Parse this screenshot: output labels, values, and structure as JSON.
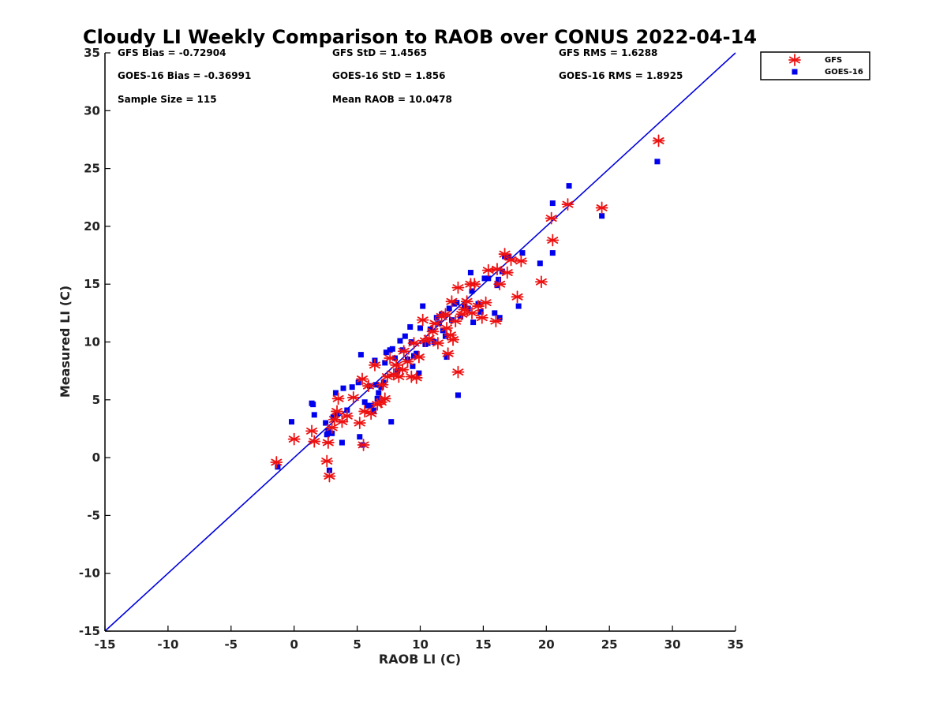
{
  "chart_data": {
    "type": "scatter",
    "title": "Cloudy LI Weekly Comparison to RAOB over CONUS 2022-04-14",
    "xlabel": "RAOB LI (C)",
    "ylabel": "Measured LI (C)",
    "xlim": [
      -15,
      35
    ],
    "ylim": [
      -15,
      35
    ],
    "xticks": [
      "-15",
      "-10",
      "-5",
      "0",
      "5",
      "10",
      "15",
      "20",
      "25",
      "30",
      "35"
    ],
    "yticks": [
      "-15",
      "-10",
      "-5",
      "0",
      "5",
      "10",
      "15",
      "20",
      "25",
      "30",
      "35"
    ],
    "grid": false,
    "legend_position": "outside top-right",
    "reference_line": {
      "x": [
        -15,
        35
      ],
      "y": [
        -15,
        35
      ],
      "color": "#0000dd"
    },
    "stats": {
      "gfs_bias": "GFS Bias = -0.72904",
      "gfs_std": "GFS StD = 1.4565",
      "gfs_rms": "GFS RMS = 1.6288",
      "goes_bias": "GOES-16 Bias = -0.36991",
      "goes_std": "GOES-16 StD = 1.856",
      "goes_rms": "GOES-16 RMS = 1.8925",
      "sample_size": "Sample Size = 115",
      "mean_raob": "Mean RAOB = 10.0478"
    },
    "series": [
      {
        "name": "GFS",
        "marker": "asterisk",
        "color": "#ee1111",
        "points": [
          [
            -1.4,
            -0.4
          ],
          [
            0.0,
            1.6
          ],
          [
            1.4,
            2.3
          ],
          [
            1.6,
            1.4
          ],
          [
            2.6,
            -0.3
          ],
          [
            2.7,
            1.3
          ],
          [
            2.8,
            -1.6
          ],
          [
            3.0,
            2.6
          ],
          [
            3.2,
            3.3
          ],
          [
            3.4,
            4.0
          ],
          [
            3.5,
            5.1
          ],
          [
            3.8,
            3.1
          ],
          [
            4.2,
            3.6
          ],
          [
            4.7,
            5.2
          ],
          [
            5.2,
            3.0
          ],
          [
            5.5,
            1.1
          ],
          [
            5.4,
            6.8
          ],
          [
            5.6,
            4.0
          ],
          [
            5.9,
            6.2
          ],
          [
            6.1,
            3.8
          ],
          [
            6.4,
            8.0
          ],
          [
            6.6,
            4.6
          ],
          [
            6.9,
            4.8
          ],
          [
            7.0,
            6.3
          ],
          [
            7.2,
            5.1
          ],
          [
            7.4,
            7.0
          ],
          [
            7.6,
            8.6
          ],
          [
            7.9,
            7.2
          ],
          [
            8.1,
            8.0
          ],
          [
            8.3,
            7.0
          ],
          [
            8.6,
            7.6
          ],
          [
            8.7,
            9.2
          ],
          [
            9.0,
            8.3
          ],
          [
            9.3,
            7.0
          ],
          [
            9.5,
            9.9
          ],
          [
            9.7,
            6.9
          ],
          [
            9.9,
            8.7
          ],
          [
            10.2,
            11.9
          ],
          [
            10.4,
            10.1
          ],
          [
            10.7,
            10.3
          ],
          [
            11.0,
            10.9
          ],
          [
            11.2,
            11.6
          ],
          [
            11.4,
            9.9
          ],
          [
            11.7,
            12.2
          ],
          [
            12.0,
            12.4
          ],
          [
            12.1,
            11.2
          ],
          [
            12.2,
            9.0
          ],
          [
            12.4,
            10.6
          ],
          [
            12.5,
            13.5
          ],
          [
            12.6,
            10.2
          ],
          [
            12.8,
            11.8
          ],
          [
            13.0,
            14.7
          ],
          [
            13.0,
            7.4
          ],
          [
            13.3,
            12.4
          ],
          [
            13.5,
            12.8
          ],
          [
            13.7,
            13.5
          ],
          [
            14.0,
            15.0
          ],
          [
            14.1,
            12.5
          ],
          [
            14.3,
            15.0
          ],
          [
            14.6,
            13.1
          ],
          [
            14.9,
            12.1
          ],
          [
            15.2,
            13.4
          ],
          [
            15.4,
            16.2
          ],
          [
            16.0,
            11.8
          ],
          [
            16.1,
            16.3
          ],
          [
            16.3,
            15.0
          ],
          [
            16.7,
            17.6
          ],
          [
            16.9,
            16.0
          ],
          [
            17.2,
            17.1
          ],
          [
            17.7,
            13.9
          ],
          [
            18.0,
            17.0
          ],
          [
            19.6,
            15.2
          ],
          [
            20.4,
            20.7
          ],
          [
            20.5,
            18.8
          ],
          [
            21.7,
            21.9
          ],
          [
            24.4,
            21.6
          ],
          [
            28.9,
            27.4
          ]
        ]
      },
      {
        "name": "GOES-16",
        "marker": "square",
        "color": "#0000ee",
        "points": [
          [
            -1.3,
            -0.8
          ],
          [
            -0.2,
            3.1
          ],
          [
            1.4,
            4.7
          ],
          [
            1.5,
            4.6
          ],
          [
            1.6,
            3.7
          ],
          [
            2.5,
            3.0
          ],
          [
            2.6,
            2.0
          ],
          [
            2.7,
            2.3
          ],
          [
            2.8,
            -1.1
          ],
          [
            3.0,
            2.1
          ],
          [
            3.1,
            3.5
          ],
          [
            3.3,
            5.6
          ],
          [
            3.4,
            3.8
          ],
          [
            3.8,
            1.3
          ],
          [
            3.9,
            6.0
          ],
          [
            4.2,
            4.1
          ],
          [
            4.6,
            6.1
          ],
          [
            5.1,
            6.5
          ],
          [
            5.2,
            1.8
          ],
          [
            5.3,
            8.9
          ],
          [
            5.4,
            1.1
          ],
          [
            5.6,
            4.8
          ],
          [
            5.8,
            4.5
          ],
          [
            6.0,
            6.2
          ],
          [
            6.1,
            4.5
          ],
          [
            6.3,
            4.1
          ],
          [
            6.4,
            8.4
          ],
          [
            6.5,
            6.3
          ],
          [
            6.6,
            5.1
          ],
          [
            6.7,
            5.6
          ],
          [
            6.9,
            6.1
          ],
          [
            7.1,
            6.5
          ],
          [
            7.2,
            8.2
          ],
          [
            7.3,
            9.1
          ],
          [
            7.6,
            9.3
          ],
          [
            7.7,
            3.1
          ],
          [
            7.8,
            9.4
          ],
          [
            8.0,
            8.6
          ],
          [
            8.2,
            7.5
          ],
          [
            8.4,
            10.1
          ],
          [
            8.6,
            9.3
          ],
          [
            8.8,
            10.5
          ],
          [
            9.0,
            8.5
          ],
          [
            9.2,
            11.3
          ],
          [
            9.3,
            10.0
          ],
          [
            9.4,
            7.9
          ],
          [
            9.5,
            8.8
          ],
          [
            9.7,
            9.0
          ],
          [
            9.9,
            7.3
          ],
          [
            10.0,
            11.2
          ],
          [
            10.2,
            13.1
          ],
          [
            10.4,
            9.8
          ],
          [
            10.6,
            9.9
          ],
          [
            10.8,
            11.1
          ],
          [
            11.1,
            10.0
          ],
          [
            11.3,
            12.1
          ],
          [
            11.5,
            11.6
          ],
          [
            11.7,
            12.4
          ],
          [
            11.8,
            11.0
          ],
          [
            12.0,
            10.5
          ],
          [
            12.1,
            8.7
          ],
          [
            12.3,
            12.9
          ],
          [
            12.5,
            11.9
          ],
          [
            12.7,
            13.3
          ],
          [
            12.9,
            13.4
          ],
          [
            13.0,
            5.4
          ],
          [
            13.2,
            12.2
          ],
          [
            13.5,
            13.1
          ],
          [
            13.8,
            12.9
          ],
          [
            14.0,
            16.0
          ],
          [
            14.1,
            14.4
          ],
          [
            14.2,
            11.7
          ],
          [
            14.6,
            13.3
          ],
          [
            14.8,
            12.6
          ],
          [
            15.1,
            15.5
          ],
          [
            15.4,
            15.5
          ],
          [
            15.9,
            12.5
          ],
          [
            16.1,
            14.9
          ],
          [
            16.2,
            15.4
          ],
          [
            16.3,
            12.1
          ],
          [
            16.5,
            16.1
          ],
          [
            16.7,
            17.4
          ],
          [
            17.0,
            17.4
          ],
          [
            17.8,
            13.1
          ],
          [
            18.1,
            17.7
          ],
          [
            19.5,
            16.8
          ],
          [
            20.5,
            22.0
          ],
          [
            20.5,
            17.7
          ],
          [
            21.8,
            23.5
          ],
          [
            24.4,
            20.9
          ],
          [
            28.8,
            25.6
          ]
        ]
      }
    ]
  }
}
